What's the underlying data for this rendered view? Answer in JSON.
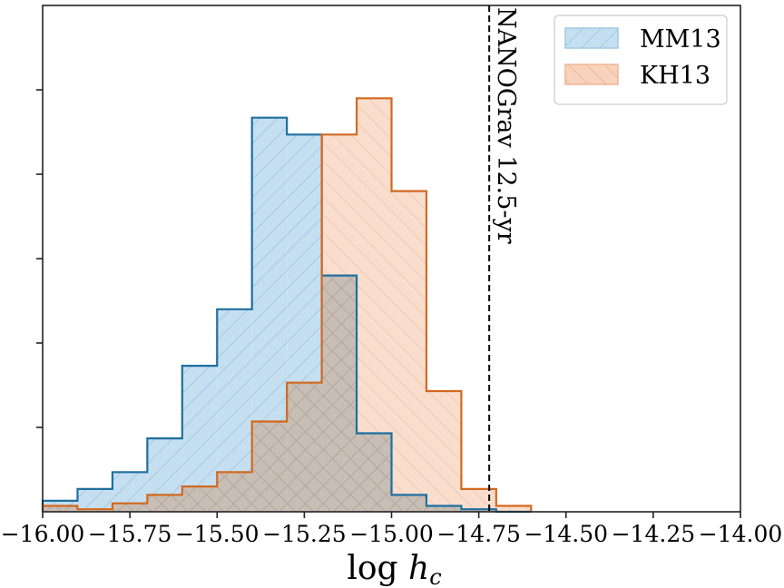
{
  "chart_data": {
    "type": "histogram",
    "xlabel_base": "log",
    "xlabel_var": "h",
    "xlabel_sub": "c",
    "xlim": [
      -16.0,
      -14.0
    ],
    "ylim": [
      0,
      60
    ],
    "xticks": [
      -16.0,
      -15.75,
      -15.5,
      -15.25,
      -15.0,
      -14.75,
      -14.5,
      -14.25,
      -14.0
    ],
    "xtick_labels": [
      "−16.00",
      "−15.75",
      "−15.50",
      "−15.25",
      "−15.00",
      "−14.75",
      "−14.50",
      "−14.25",
      "−14.00"
    ],
    "yticks": [
      10,
      20,
      30,
      40,
      50
    ],
    "bins": [
      -16.0,
      -15.9,
      -15.8,
      -15.7,
      -15.6,
      -15.5,
      -15.4,
      -15.3,
      -15.2,
      -15.1,
      -15.0,
      -14.9,
      -14.8,
      -14.7,
      -14.6
    ],
    "series": [
      {
        "name": "MM13",
        "fill": "#c6dff0",
        "hatch_color": "#9ecae1",
        "edge": "#1f6fa0",
        "hatch": "forward",
        "counts": [
          1.3,
          2.7,
          4.7,
          8.7,
          17.3,
          24.0,
          46.7,
          44.7,
          28.0,
          9.3,
          2.0,
          0.7,
          0.3,
          0.0
        ]
      },
      {
        "name": "KH13",
        "fill": "#f7d3bd",
        "hatch_color": "#f0b596",
        "edge": "#d2691e",
        "hatch": "back",
        "counts": [
          0.7,
          0.3,
          1.0,
          2.0,
          3.0,
          4.7,
          10.7,
          15.3,
          44.7,
          49.0,
          38.0,
          14.3,
          2.7,
          0.7
        ]
      }
    ],
    "legend_position": "upper right",
    "vline": {
      "x": -14.72,
      "style": "dashed",
      "label": "NANOGrav 12.5-yr"
    }
  }
}
